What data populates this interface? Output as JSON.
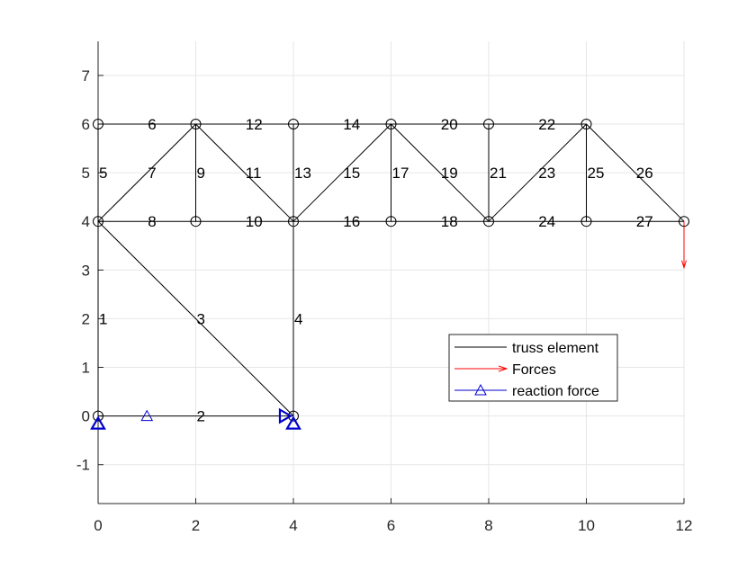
{
  "chart_data": {
    "type": "truss",
    "title": "",
    "xlabel": "",
    "ylabel": "",
    "xlim": [
      0,
      12
    ],
    "ylim": [
      -1.8,
      7.7
    ],
    "grid": true,
    "x_ticks": [
      "0",
      "2",
      "4",
      "6",
      "8",
      "10",
      "12"
    ],
    "y_ticks": [
      "-1",
      "0",
      "1",
      "2",
      "3",
      "4",
      "5",
      "6",
      "7"
    ],
    "x_tick_values": [
      0,
      2,
      4,
      6,
      8,
      10,
      12
    ],
    "y_tick_values": [
      -1,
      0,
      1,
      2,
      3,
      4,
      5,
      6,
      7
    ],
    "nodes": [
      {
        "x": 0,
        "y": 0
      },
      {
        "x": 4,
        "y": 0
      },
      {
        "x": 0,
        "y": 4
      },
      {
        "x": 0,
        "y": 6
      },
      {
        "x": 2,
        "y": 6
      },
      {
        "x": 2,
        "y": 4
      },
      {
        "x": 4,
        "y": 6
      },
      {
        "x": 4,
        "y": 4
      },
      {
        "x": 6,
        "y": 6
      },
      {
        "x": 6,
        "y": 4
      },
      {
        "x": 8,
        "y": 6
      },
      {
        "x": 8,
        "y": 4
      },
      {
        "x": 10,
        "y": 6
      },
      {
        "x": 10,
        "y": 4
      },
      {
        "x": 12,
        "y": 4
      }
    ],
    "elements": [
      {
        "label": "1",
        "from": [
          0,
          0
        ],
        "to": [
          0,
          4
        ]
      },
      {
        "label": "2",
        "from": [
          0,
          0
        ],
        "to": [
          4,
          0
        ]
      },
      {
        "label": "3",
        "from": [
          0,
          4
        ],
        "to": [
          4,
          0
        ]
      },
      {
        "label": "4",
        "from": [
          4,
          0
        ],
        "to": [
          4,
          4
        ]
      },
      {
        "label": "5",
        "from": [
          0,
          4
        ],
        "to": [
          0,
          6
        ]
      },
      {
        "label": "6",
        "from": [
          0,
          6
        ],
        "to": [
          2,
          6
        ]
      },
      {
        "label": "7",
        "from": [
          0,
          4
        ],
        "to": [
          2,
          6
        ]
      },
      {
        "label": "8",
        "from": [
          0,
          4
        ],
        "to": [
          2,
          4
        ]
      },
      {
        "label": "9",
        "from": [
          2,
          4
        ],
        "to": [
          2,
          6
        ]
      },
      {
        "label": "10",
        "from": [
          2,
          4
        ],
        "to": [
          4,
          4
        ]
      },
      {
        "label": "11",
        "from": [
          2,
          6
        ],
        "to": [
          4,
          4
        ]
      },
      {
        "label": "12",
        "from": [
          2,
          6
        ],
        "to": [
          4,
          6
        ]
      },
      {
        "label": "13",
        "from": [
          4,
          4
        ],
        "to": [
          4,
          6
        ]
      },
      {
        "label": "14",
        "from": [
          4,
          6
        ],
        "to": [
          6,
          6
        ]
      },
      {
        "label": "15",
        "from": [
          4,
          4
        ],
        "to": [
          6,
          6
        ]
      },
      {
        "label": "16",
        "from": [
          4,
          4
        ],
        "to": [
          6,
          4
        ]
      },
      {
        "label": "17",
        "from": [
          6,
          4
        ],
        "to": [
          6,
          6
        ]
      },
      {
        "label": "18",
        "from": [
          6,
          4
        ],
        "to": [
          8,
          4
        ]
      },
      {
        "label": "19",
        "from": [
          6,
          6
        ],
        "to": [
          8,
          4
        ]
      },
      {
        "label": "20",
        "from": [
          6,
          6
        ],
        "to": [
          8,
          6
        ]
      },
      {
        "label": "21",
        "from": [
          8,
          4
        ],
        "to": [
          8,
          6
        ]
      },
      {
        "label": "22",
        "from": [
          8,
          6
        ],
        "to": [
          10,
          6
        ]
      },
      {
        "label": "23",
        "from": [
          8,
          4
        ],
        "to": [
          10,
          6
        ]
      },
      {
        "label": "24",
        "from": [
          8,
          4
        ],
        "to": [
          10,
          4
        ]
      },
      {
        "label": "25",
        "from": [
          10,
          4
        ],
        "to": [
          10,
          6
        ]
      },
      {
        "label": "26",
        "from": [
          10,
          6
        ],
        "to": [
          12,
          4
        ]
      },
      {
        "label": "27",
        "from": [
          10,
          4
        ],
        "to": [
          12,
          4
        ]
      }
    ],
    "forces": [
      {
        "x": 12,
        "y": 4,
        "fx": 0,
        "fy": -0.95
      }
    ],
    "supports": [
      {
        "x": 0,
        "y": 0,
        "kind": "triangle-up"
      },
      {
        "x": 4,
        "y": 0,
        "kind": "triangle-up"
      },
      {
        "x": 4,
        "y": 0,
        "kind": "triangle-right"
      }
    ],
    "legend": {
      "position": "lower-right",
      "items": [
        {
          "label": "truss element",
          "color": "#000000",
          "marker": "line"
        },
        {
          "label": "Forces",
          "color": "#ff0000",
          "marker": "arrow"
        },
        {
          "label": "reaction force",
          "color": "#0000cc",
          "marker": "triangle"
        }
      ]
    },
    "colors": {
      "element": "#000000",
      "force": "#ff0000",
      "support": "#0000cc",
      "grid": "#e6e6e6",
      "axis": "#262626"
    }
  }
}
